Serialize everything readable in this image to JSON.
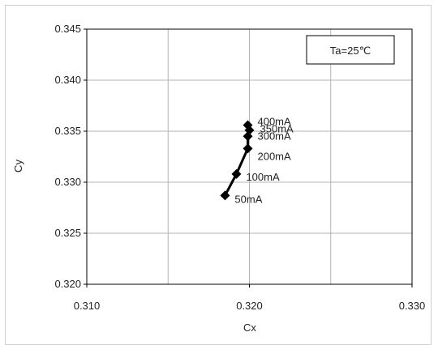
{
  "chart_data": {
    "type": "line",
    "title": "",
    "xlabel": "Cx",
    "ylabel": "Cy",
    "xlim": [
      0.31,
      0.33
    ],
    "ylim": [
      0.32,
      0.345
    ],
    "x_ticks": [
      "0.310",
      "0.320",
      "0.330"
    ],
    "y_ticks": [
      "0.320",
      "0.325",
      "0.330",
      "0.335",
      "0.340",
      "0.345"
    ],
    "grid": true,
    "annotation_box": "Ta=25℃",
    "series": [
      {
        "points": [
          {
            "x": 0.3185,
            "y": 0.3287,
            "label": "50mA"
          },
          {
            "x": 0.3192,
            "y": 0.3308,
            "label": "100mA"
          },
          {
            "x": 0.3199,
            "y": 0.3333,
            "label": "200mA"
          },
          {
            "x": 0.3199,
            "y": 0.3345,
            "label": "300mA"
          },
          {
            "x": 0.32,
            "y": 0.3351,
            "label": "350mA"
          },
          {
            "x": 0.3199,
            "y": 0.3356,
            "label": "400mA"
          }
        ]
      }
    ],
    "colors": {
      "line": "#000000",
      "grid": "#b3b3b3",
      "axis": "#000000"
    }
  }
}
